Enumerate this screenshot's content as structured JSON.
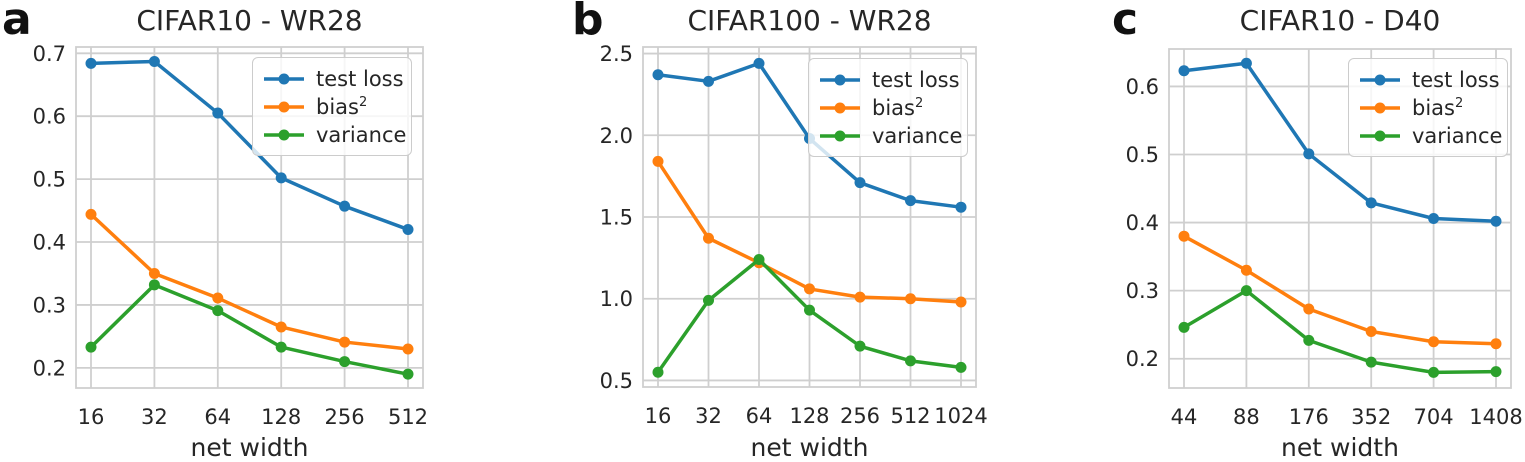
{
  "figure": {
    "background_color": "#ffffff",
    "text_color": "#262626",
    "grid_color": "#cfcfcf",
    "series_colors": {
      "test_loss": "#1f77b4",
      "bias2": "#ff7f0e",
      "variance": "#2ca02c"
    }
  },
  "chart_data": [
    {
      "type": "line",
      "panel_letter": "a",
      "title": "CIFAR10 - WR28",
      "xlabel": "net width",
      "x_scale": "log2-categorical",
      "grid": true,
      "legend_position": "upper right",
      "categories": [
        "16",
        "32",
        "64",
        "128",
        "256",
        "512"
      ],
      "series": [
        {
          "name": "test loss",
          "name_sup": "",
          "color": "#1f77b4",
          "values": [
            0.684,
            0.687,
            0.605,
            0.502,
            0.457,
            0.42
          ]
        },
        {
          "name": "bias",
          "name_sup": "2",
          "color": "#ff7f0e",
          "values": [
            0.444,
            0.35,
            0.311,
            0.265,
            0.241,
            0.23
          ]
        },
        {
          "name": "variance",
          "name_sup": "",
          "color": "#2ca02c",
          "values": [
            0.233,
            0.332,
            0.291,
            0.233,
            0.21,
            0.19
          ]
        }
      ],
      "ylim": [
        0.168,
        0.71
      ],
      "yticks": [
        0.2,
        0.3,
        0.4,
        0.5,
        0.6,
        0.7
      ],
      "ytick_labels": [
        "0.2",
        "0.3",
        "0.4",
        "0.5",
        "0.6",
        "0.7"
      ]
    },
    {
      "type": "line",
      "panel_letter": "b",
      "title": "CIFAR100 - WR28",
      "xlabel": "net width",
      "x_scale": "log2-categorical",
      "grid": true,
      "legend_position": "upper right",
      "categories": [
        "16",
        "32",
        "64",
        "128",
        "256",
        "512",
        "1024"
      ],
      "series": [
        {
          "name": "test loss",
          "name_sup": "",
          "color": "#1f77b4",
          "values": [
            2.37,
            2.33,
            2.44,
            1.98,
            1.71,
            1.6,
            1.56
          ]
        },
        {
          "name": "bias",
          "name_sup": "2",
          "color": "#ff7f0e",
          "values": [
            1.84,
            1.37,
            1.22,
            1.06,
            1.01,
            1.0,
            0.98
          ]
        },
        {
          "name": "variance",
          "name_sup": "",
          "color": "#2ca02c",
          "values": [
            0.55,
            0.99,
            1.24,
            0.93,
            0.71,
            0.62,
            0.58
          ]
        }
      ],
      "ylim": [
        0.46,
        2.54
      ],
      "yticks": [
        0.5,
        1.0,
        1.5,
        2.0,
        2.5
      ],
      "ytick_labels": [
        "0.5",
        "1.0",
        "1.5",
        "2.0",
        "2.5"
      ]
    },
    {
      "type": "line",
      "panel_letter": "c",
      "title": "CIFAR10 - D40",
      "xlabel": "net width",
      "x_scale": "log2-categorical",
      "grid": true,
      "legend_position": "upper right",
      "categories": [
        "44",
        "88",
        "176",
        "352",
        "704",
        "1408"
      ],
      "series": [
        {
          "name": "test loss",
          "name_sup": "",
          "color": "#1f77b4",
          "values": [
            0.623,
            0.634,
            0.501,
            0.429,
            0.406,
            0.402
          ]
        },
        {
          "name": "bias",
          "name_sup": "2",
          "color": "#ff7f0e",
          "values": [
            0.38,
            0.33,
            0.273,
            0.24,
            0.225,
            0.222
          ]
        },
        {
          "name": "variance",
          "name_sup": "",
          "color": "#2ca02c",
          "values": [
            0.246,
            0.3,
            0.227,
            0.195,
            0.18,
            0.181
          ]
        }
      ],
      "ylim": [
        0.157,
        0.655
      ],
      "yticks": [
        0.2,
        0.3,
        0.4,
        0.5,
        0.6
      ],
      "ytick_labels": [
        "0.2",
        "0.3",
        "0.4",
        "0.5",
        "0.6"
      ]
    }
  ]
}
